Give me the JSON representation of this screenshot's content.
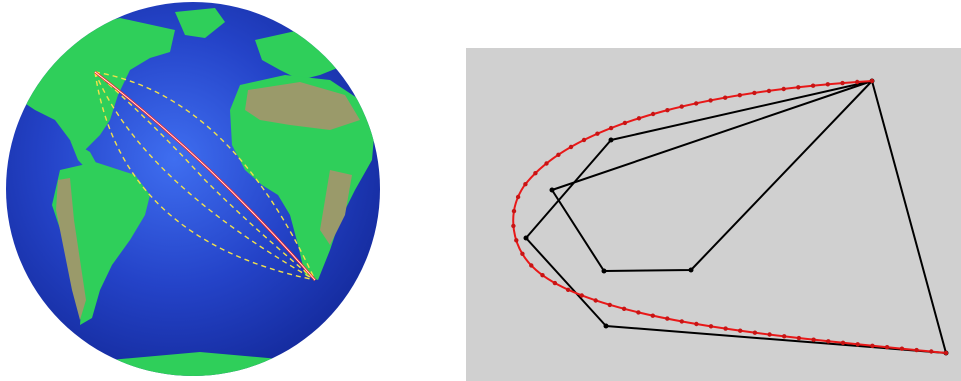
{
  "globe": {
    "colors": {
      "ocean_deep": "#1a2fb0",
      "ocean": "#2d4fd8",
      "ocean_shallow": "#4a7cf0",
      "land_green": "#2fcf5a",
      "land_tan": "#9a9a6a",
      "great_circle": "#ff2020",
      "approx_paths": "#f3e14a"
    }
  },
  "plot": {
    "colors": {
      "background": "#d0d0d0",
      "target_curve": "#e81818",
      "control_polygon": "#000000",
      "sample_points": "#c81414"
    }
  }
}
